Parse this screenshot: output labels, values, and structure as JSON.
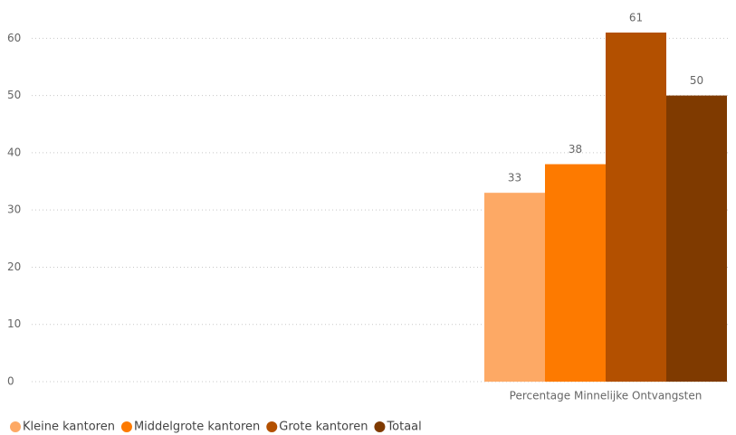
{
  "chart_data": {
    "type": "bar",
    "categories": [
      "Percentage Minnelijke Ontvangsten"
    ],
    "series": [
      {
        "name": "Kleine kantoren",
        "color": "#FDA965",
        "values": [
          33
        ]
      },
      {
        "name": "Middelgrote kantoren",
        "color": "#FD7A00",
        "values": [
          38
        ]
      },
      {
        "name": "Grote kantoren",
        "color": "#B35000",
        "values": [
          61
        ]
      },
      {
        "name": "Totaal",
        "color": "#7F3A00",
        "values": [
          50
        ]
      }
    ],
    "ylim": [
      0,
      61
    ],
    "yticks": [
      0,
      10,
      20,
      30,
      40,
      50,
      60
    ],
    "grid": true,
    "legend": "bottom"
  }
}
